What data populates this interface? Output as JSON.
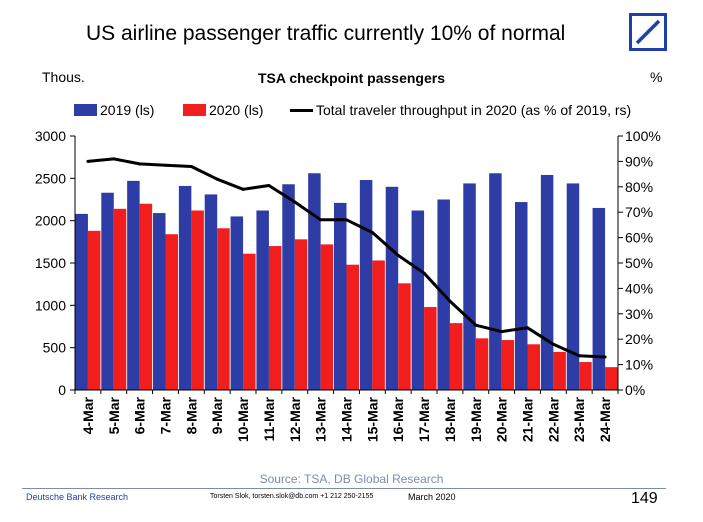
{
  "slide": {
    "title": "US airline passenger traffic currently 10% of normal",
    "source": "Source:  TSA, DB Global Research",
    "footer_org": "Deutsche Bank Research",
    "footer_author": "Torsten Slok, torsten.slok@db.com  +1 212 250-2155",
    "footer_date": "March  2020",
    "page_number": "149",
    "logo": "deutsche-bank-logo"
  },
  "chart_data": {
    "type": "bar",
    "title": "TSA checkpoint passengers",
    "left_unit": "Thous.",
    "right_unit": "%",
    "categories": [
      "4-Mar",
      "5-Mar",
      "6-Mar",
      "7-Mar",
      "8-Mar",
      "9-Mar",
      "10-Mar",
      "11-Mar",
      "12-Mar",
      "13-Mar",
      "14-Mar",
      "15-Mar",
      "16-Mar",
      "17-Mar",
      "18-Mar",
      "19-Mar",
      "20-Mar",
      "21-Mar",
      "22-Mar",
      "23-Mar",
      "24-Mar"
    ],
    "series": [
      {
        "name": "2019 (ls)",
        "type": "bar",
        "axis": "left",
        "color": "#2e3da6",
        "values": [
          2080,
          2330,
          2470,
          2090,
          2410,
          2310,
          2050,
          2120,
          2430,
          2560,
          2210,
          2480,
          2400,
          2120,
          2250,
          2440,
          2560,
          2220,
          2540,
          2440,
          2150
        ]
      },
      {
        "name": "2020 (ls)",
        "type": "bar",
        "axis": "left",
        "color": "#f21e1e",
        "values": [
          1880,
          2140,
          2200,
          1840,
          2120,
          1910,
          1610,
          1700,
          1780,
          1720,
          1480,
          1530,
          1260,
          980,
          790,
          610,
          590,
          540,
          450,
          330,
          270
        ]
      },
      {
        "name": "Total traveler throughput in 2020 (as % of 2019, rs)",
        "type": "line",
        "axis": "right",
        "color": "#000000",
        "values": [
          90,
          91,
          89,
          88.5,
          88,
          83,
          79,
          80.5,
          74,
          67,
          67,
          62,
          53,
          46,
          35,
          25.5,
          23,
          24.5,
          18,
          13.5,
          13
        ]
      }
    ],
    "left_axis": {
      "min": 0,
      "max": 3000,
      "ticks": [
        0,
        500,
        1000,
        1500,
        2000,
        2500,
        3000
      ]
    },
    "right_axis": {
      "min": 0,
      "max": 100,
      "ticks": [
        "0%",
        "10%",
        "20%",
        "30%",
        "40%",
        "50%",
        "60%",
        "70%",
        "80%",
        "90%",
        "100%"
      ]
    },
    "grid": false,
    "legend_position": "top"
  }
}
